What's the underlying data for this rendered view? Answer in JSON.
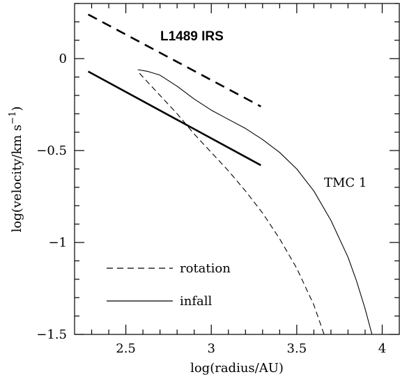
{
  "chart_data": {
    "type": "line",
    "xlabel": "log(radius/AU)",
    "ylabel_main": "log(velocity/km s",
    "ylabel_sup": "−1",
    "ylabel_close": ")",
    "xlim": [
      2.2,
      4.1
    ],
    "ylim": [
      -1.5,
      0.3
    ],
    "xticks": [
      {
        "value": 2.5,
        "label": "2.5"
      },
      {
        "value": 3.0,
        "label": "3"
      },
      {
        "value": 3.5,
        "label": "3.5"
      },
      {
        "value": 4.0,
        "label": "4"
      }
    ],
    "yticks": [
      {
        "value": 0,
        "label": "0"
      },
      {
        "value": -0.5,
        "label": "−0.5"
      },
      {
        "value": -1.0,
        "label": "−1"
      },
      {
        "value": -1.5,
        "label": "−1.5"
      }
    ],
    "series": [
      {
        "group": "L1489 IRS",
        "kind": "rotation",
        "style": "thick-dashed",
        "x": [
          2.28,
          3.29
        ],
        "y": [
          0.24,
          -0.26
        ]
      },
      {
        "group": "L1489 IRS",
        "kind": "infall",
        "style": "thick-solid",
        "x": [
          2.28,
          3.29
        ],
        "y": [
          -0.07,
          -0.58
        ]
      },
      {
        "group": "TMC 1",
        "kind": "rotation",
        "style": "thin-dashed",
        "x": [
          2.58,
          2.7,
          2.8,
          2.9,
          3.0,
          3.1,
          3.2,
          3.3,
          3.4,
          3.5,
          3.6,
          3.66
        ],
        "y": [
          -0.08,
          -0.2,
          -0.3,
          -0.41,
          -0.51,
          -0.61,
          -0.72,
          -0.84,
          -0.98,
          -1.14,
          -1.34,
          -1.5
        ]
      },
      {
        "group": "TMC 1",
        "kind": "infall",
        "style": "thin-solid",
        "x": [
          2.57,
          2.63,
          2.7,
          2.8,
          2.9,
          3.0,
          3.1,
          3.2,
          3.3,
          3.4,
          3.5,
          3.6,
          3.7,
          3.8,
          3.85,
          3.9,
          3.94
        ],
        "y": [
          -0.06,
          -0.07,
          -0.09,
          -0.15,
          -0.22,
          -0.28,
          -0.33,
          -0.38,
          -0.44,
          -0.51,
          -0.6,
          -0.72,
          -0.88,
          -1.08,
          -1.21,
          -1.36,
          -1.5
        ]
      }
    ],
    "annotations": {
      "l1489": "L1489 IRS",
      "tmc1": "TMC 1"
    },
    "legend": {
      "position": "bottom-left",
      "items": [
        {
          "label": "rotation",
          "style": "dashed"
        },
        {
          "label": "infall",
          "style": "solid"
        }
      ]
    },
    "grid": false
  }
}
